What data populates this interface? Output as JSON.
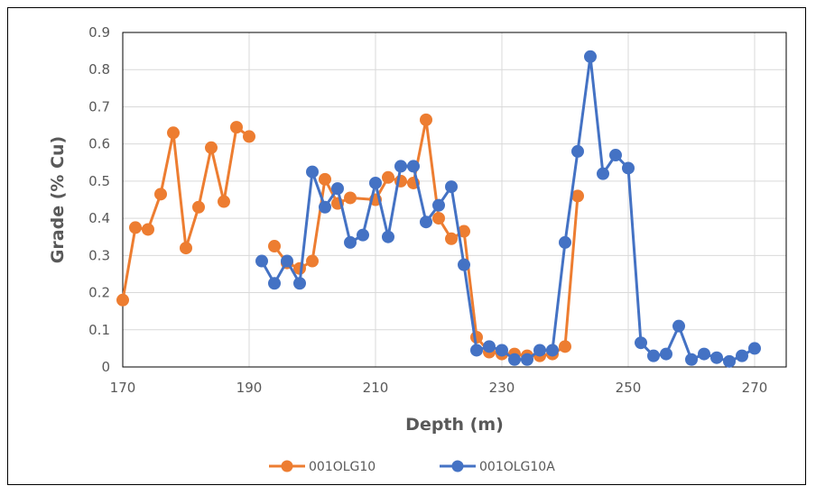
{
  "chart_data": {
    "type": "line",
    "xlabel": "Depth (m)",
    "ylabel": "Grade (% Cu)",
    "xlim": [
      170,
      275
    ],
    "ylim": [
      0,
      0.9
    ],
    "x_ticks": [
      "170",
      "190",
      "210",
      "230",
      "250",
      "270"
    ],
    "y_ticks": [
      "0",
      "0.1",
      "0.2",
      "0.3",
      "0.4",
      "0.5",
      "0.6",
      "0.7",
      "0.8",
      "0.9"
    ],
    "grid": true,
    "legend_position": "bottom",
    "series": [
      {
        "name": "001OLG10",
        "color": "#ED7D31",
        "segments": [
          [
            [
              170,
              0.18
            ],
            [
              172,
              0.375
            ],
            [
              174,
              0.37
            ],
            [
              176,
              0.465
            ],
            [
              178,
              0.63
            ],
            [
              180,
              0.32
            ],
            [
              182,
              0.43
            ],
            [
              184,
              0.59
            ],
            [
              186,
              0.445
            ],
            [
              188,
              0.645
            ],
            [
              190,
              0.62
            ]
          ],
          [
            [
              194,
              0.325
            ],
            [
              196,
              0.28
            ],
            [
              198,
              0.265
            ],
            [
              200,
              0.285
            ],
            [
              202,
              0.505
            ],
            [
              204,
              0.44
            ],
            [
              206,
              0.455
            ],
            [
              208,
              null
            ],
            [
              210,
              0.45
            ],
            [
              212,
              0.51
            ],
            [
              214,
              0.5
            ],
            [
              216,
              0.495
            ],
            [
              218,
              0.665
            ],
            [
              220,
              0.4
            ],
            [
              222,
              0.345
            ],
            [
              224,
              0.365
            ],
            [
              226,
              0.08
            ],
            [
              228,
              0.04
            ],
            [
              230,
              0.035
            ],
            [
              232,
              0.035
            ],
            [
              234,
              0.03
            ],
            [
              236,
              0.03
            ],
            [
              238,
              0.035
            ],
            [
              240,
              0.055
            ],
            [
              242,
              0.46
            ]
          ]
        ]
      },
      {
        "name": "001OLG10A",
        "color": "#4472C4",
        "segments": [
          [
            [
              192,
              0.285
            ],
            [
              194,
              0.225
            ],
            [
              196,
              0.285
            ],
            [
              198,
              0.225
            ],
            [
              200,
              0.525
            ],
            [
              202,
              0.43
            ],
            [
              204,
              0.48
            ],
            [
              206,
              0.335
            ],
            [
              208,
              0.355
            ],
            [
              210,
              0.495
            ],
            [
              212,
              0.35
            ],
            [
              214,
              0.54
            ],
            [
              216,
              0.54
            ],
            [
              218,
              0.39
            ],
            [
              220,
              0.435
            ],
            [
              222,
              0.485
            ],
            [
              224,
              0.275
            ],
            [
              226,
              0.045
            ],
            [
              228,
              0.055
            ],
            [
              230,
              0.045
            ],
            [
              232,
              0.02
            ],
            [
              234,
              0.02
            ],
            [
              236,
              0.045
            ],
            [
              238,
              0.045
            ],
            [
              240,
              0.335
            ],
            [
              242,
              0.58
            ],
            [
              244,
              0.835
            ],
            [
              246,
              0.52
            ],
            [
              248,
              0.57
            ],
            [
              250,
              0.535
            ],
            [
              252,
              0.065
            ],
            [
              254,
              0.03
            ],
            [
              256,
              0.035
            ],
            [
              258,
              0.11
            ],
            [
              260,
              0.02
            ],
            [
              262,
              0.035
            ],
            [
              264,
              0.025
            ],
            [
              266,
              0.015
            ],
            [
              268,
              0.03
            ],
            [
              270,
              0.05
            ]
          ]
        ]
      }
    ]
  }
}
